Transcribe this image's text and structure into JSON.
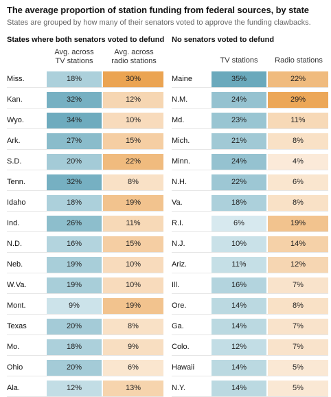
{
  "title": "The average proportion of station funding from federal sources, by state",
  "subtitle": "States are grouped by how many of their senators voted to approve the funding clawbacks.",
  "chart_data": {
    "type": "table",
    "panels": [
      {
        "title": "States where both senators voted to defund",
        "tv_header": [
          "Avg. across",
          "TV stations"
        ],
        "radio_header": [
          "Avg. across",
          "radio stations"
        ],
        "rows": [
          {
            "state": "Miss.",
            "tv": 18,
            "radio": 30
          },
          {
            "state": "Kan.",
            "tv": 32,
            "radio": 12
          },
          {
            "state": "Wyo.",
            "tv": 34,
            "radio": 10
          },
          {
            "state": "Ark.",
            "tv": 27,
            "radio": 15
          },
          {
            "state": "S.D.",
            "tv": 20,
            "radio": 22
          },
          {
            "state": "Tenn.",
            "tv": 32,
            "radio": 8
          },
          {
            "state": "Idaho",
            "tv": 18,
            "radio": 19
          },
          {
            "state": "Ind.",
            "tv": 26,
            "radio": 11
          },
          {
            "state": "N.D.",
            "tv": 16,
            "radio": 15
          },
          {
            "state": "Neb.",
            "tv": 19,
            "radio": 10
          },
          {
            "state": "W.Va.",
            "tv": 19,
            "radio": 10
          },
          {
            "state": "Mont.",
            "tv": 9,
            "radio": 19
          },
          {
            "state": "Texas",
            "tv": 20,
            "radio": 8
          },
          {
            "state": "Mo.",
            "tv": 18,
            "radio": 9
          },
          {
            "state": "Ohio",
            "tv": 20,
            "radio": 6
          },
          {
            "state": "Ala.",
            "tv": 12,
            "radio": 13
          }
        ]
      },
      {
        "title": "No senators voted to defund",
        "tv_header": [
          "TV stations"
        ],
        "radio_header": [
          "Radio stations"
        ],
        "rows": [
          {
            "state": "Maine",
            "tv": 35,
            "radio": 22
          },
          {
            "state": "N.M.",
            "tv": 24,
            "radio": 29
          },
          {
            "state": "Md.",
            "tv": 23,
            "radio": 11
          },
          {
            "state": "Mich.",
            "tv": 21,
            "radio": 8
          },
          {
            "state": "Minn.",
            "tv": 24,
            "radio": 4
          },
          {
            "state": "N.H.",
            "tv": 22,
            "radio": 6
          },
          {
            "state": "Va.",
            "tv": 18,
            "radio": 8
          },
          {
            "state": "R.I.",
            "tv": 6,
            "radio": 19
          },
          {
            "state": "N.J.",
            "tv": 10,
            "radio": 14
          },
          {
            "state": "Ariz.",
            "tv": 11,
            "radio": 12
          },
          {
            "state": "Ill.",
            "tv": 16,
            "radio": 7
          },
          {
            "state": "Ore.",
            "tv": 14,
            "radio": 8
          },
          {
            "state": "Ga.",
            "tv": 14,
            "radio": 7
          },
          {
            "state": "Colo.",
            "tv": 12,
            "radio": 7
          },
          {
            "state": "Hawaii",
            "tv": 14,
            "radio": 5
          },
          {
            "state": "N.Y.",
            "tv": 14,
            "radio": 5
          }
        ]
      }
    ],
    "tv_color_low": "#e9f4f7",
    "tv_color_high": "#6aa9bc",
    "radio_color_low": "#fdf3e9",
    "radio_color_high": "#eba452"
  }
}
